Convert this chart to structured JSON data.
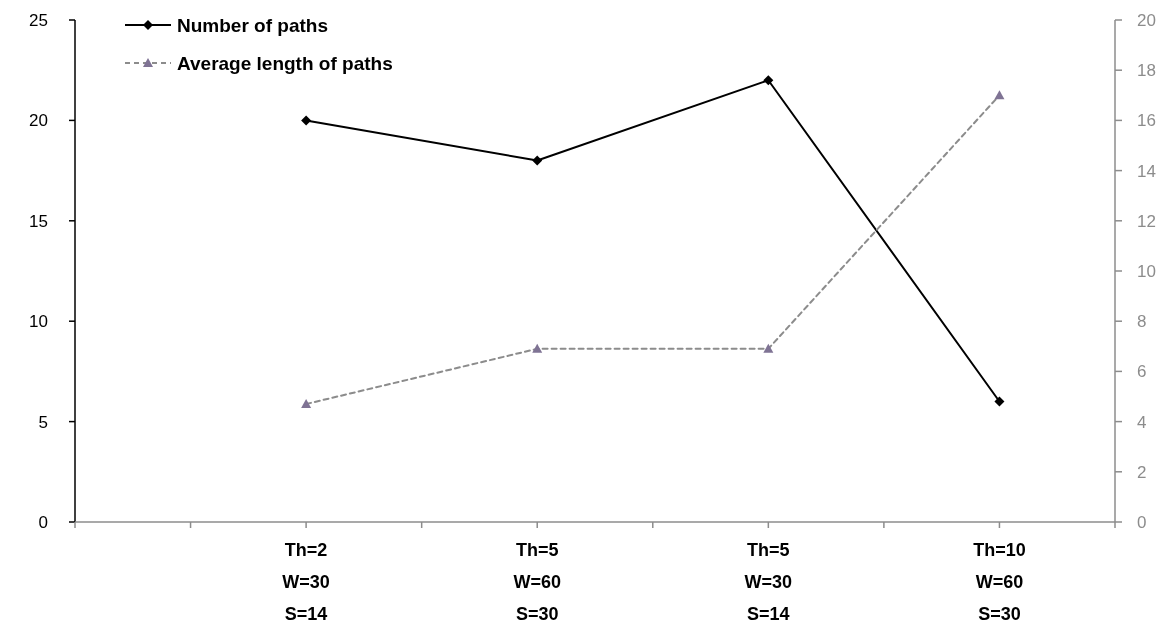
{
  "chart_data": {
    "type": "line",
    "categories": [
      null,
      null,
      "Th=2\nW=30\nS=14",
      null,
      "Th=5\nW=60\nS=30",
      null,
      "Th=5\nW=30\nS=14",
      null,
      "Th=10\nW=60\nS=30",
      null
    ],
    "series": [
      {
        "name": "Number of paths",
        "color": "#000000",
        "marker": "diamond",
        "line_style": "solid",
        "values": [
          null,
          null,
          20,
          null,
          18,
          null,
          22,
          null,
          6,
          null
        ]
      },
      {
        "name": "Average length of paths",
        "color": "#8c8c8c",
        "marker": "triangle",
        "line_style": "dashed",
        "axis": "y2",
        "values": [
          null,
          null,
          4.7,
          null,
          6.9,
          null,
          6.9,
          null,
          17,
          null
        ]
      }
    ],
    "ylim": [
      0,
      25
    ],
    "yticks": [
      0,
      5,
      10,
      15,
      20,
      25
    ],
    "y2lim": [
      0,
      20
    ],
    "y2ticks": [
      0,
      2,
      4,
      6,
      8,
      10,
      12,
      14,
      16,
      18,
      20
    ],
    "grid": false,
    "legend": "top left"
  }
}
